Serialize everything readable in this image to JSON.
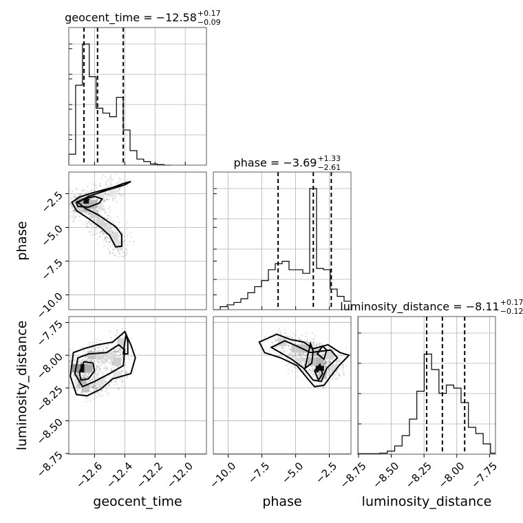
{
  "chart_data": {
    "type": "corner",
    "parameters": [
      "geocent_time",
      "phase",
      "luminosity_distance"
    ],
    "axis_labels": {
      "x": [
        "geocent_time",
        "phase",
        "luminosity_distance"
      ],
      "y": [
        "phase",
        "luminosity_distance"
      ]
    },
    "titles": [
      {
        "param": "geocent_time",
        "text": "geocent_time = −12.58",
        "plus": "+0.17",
        "minus": "−0.09"
      },
      {
        "param": "phase",
        "text": "phase = −3.69",
        "plus": "+1.33",
        "minus": "−2.61"
      },
      {
        "param": "luminosity_distance",
        "text": "luminosity_distance = −8.11",
        "plus": "+0.17",
        "minus": "−0.12"
      }
    ],
    "ranges": {
      "geocent_time": [
        -12.77,
        -11.86
      ],
      "phase": [
        -11.1,
        -0.9
      ],
      "luminosity_distance": [
        -8.755,
        -7.705
      ]
    },
    "ticks": {
      "geocent_time": [
        -12.6,
        -12.4,
        -12.2,
        -12.0
      ],
      "phase": [
        -10.0,
        -7.5,
        -5.0,
        -2.5
      ],
      "luminosity_distance": [
        -8.75,
        -8.5,
        -8.25,
        -8.0,
        -7.75
      ]
    },
    "tick_labels": {
      "geocent_time": [
        "−12.6",
        "−12.4",
        "−12.2",
        "−12.0"
      ],
      "phase": [
        "−10.0",
        "−7.5",
        "−5.0",
        "−2.5"
      ],
      "luminosity_distance": [
        "−8.75",
        "−8.50",
        "−8.25",
        "−8.00",
        "−7.75"
      ]
    },
    "quantiles": {
      "geocent_time": [
        -12.67,
        -12.58,
        -12.41
      ],
      "phase": [
        -6.3,
        -3.69,
        -2.36
      ],
      "luminosity_distance": [
        -8.23,
        -8.11,
        -7.94
      ]
    },
    "histograms": {
      "geocent_time": {
        "edges": [
          -12.77,
          -12.725,
          -12.68,
          -12.635,
          -12.59,
          -12.545,
          -12.5,
          -12.455,
          -12.41,
          -12.365,
          -12.32,
          -12.275,
          -12.23,
          -12.185,
          -12.14,
          -12.095
        ],
        "counts": [
          0.09,
          0.66,
          1.0,
          0.73,
          0.47,
          0.43,
          0.4,
          0.56,
          0.29,
          0.12,
          0.05,
          0.03,
          0.01,
          0.005,
          0.0
        ]
      },
      "phase": {
        "edges": [
          -11.1,
          -10.59,
          -10.08,
          -9.57,
          -9.06,
          -8.55,
          -8.04,
          -7.53,
          -7.02,
          -6.51,
          -6.0,
          -5.49,
          -4.98,
          -4.47,
          -3.96,
          -3.45,
          -2.94,
          -2.43,
          -1.92,
          -1.41,
          -0.9
        ],
        "counts": [
          0.0,
          0.025,
          0.04,
          0.06,
          0.09,
          0.14,
          0.19,
          0.24,
          0.33,
          0.38,
          0.4,
          0.33,
          0.33,
          0.3,
          1.0,
          0.34,
          0.33,
          0.17,
          0.11,
          0.07
        ]
      },
      "luminosity_distance": {
        "edges": [
          -8.755,
          -8.6988,
          -8.6425,
          -8.5863,
          -8.53,
          -8.4738,
          -8.4175,
          -8.3613,
          -8.305,
          -8.2488,
          -8.1925,
          -8.1363,
          -8.08,
          -8.0238,
          -7.9675,
          -7.9113,
          -7.855,
          -7.7988,
          -7.7425,
          -7.705
        ],
        "counts": [
          0.005,
          0.005,
          0.005,
          0.01,
          0.03,
          0.08,
          0.18,
          0.34,
          0.61,
          0.97,
          0.82,
          0.59,
          0.67,
          0.64,
          0.5,
          0.26,
          0.2,
          0.1,
          0.01
        ]
      }
    },
    "density_2d": [
      {
        "x": "geocent_time",
        "y": "phase",
        "cells": [
          [
            -12.66,
            -3.2,
            1.0
          ],
          [
            -12.7,
            -3.1,
            0.35
          ],
          [
            -12.61,
            -3.3,
            0.3
          ],
          [
            -12.66,
            -3.55,
            0.3
          ],
          [
            -12.6,
            -4.0,
            0.2
          ],
          [
            -12.56,
            -4.7,
            0.18
          ],
          [
            -12.52,
            -5.2,
            0.15
          ],
          [
            -12.47,
            -5.7,
            0.15
          ],
          [
            -12.44,
            -6.3,
            0.12
          ],
          [
            -12.56,
            -2.6,
            0.12
          ],
          [
            -12.48,
            -2.2,
            0.1
          ],
          [
            -12.7,
            -3.6,
            0.2
          ]
        ],
        "contours": [
          [
            [
              -12.75,
              -3.15
            ],
            [
              -12.7,
              -2.75
            ],
            [
              -12.6,
              -2.4
            ],
            [
              -12.48,
              -2.05
            ],
            [
              -12.41,
              -1.75
            ],
            [
              -12.36,
              -1.6
            ],
            [
              -12.4,
              -1.85
            ],
            [
              -12.52,
              -2.25
            ],
            [
              -12.64,
              -2.7
            ],
            [
              -12.71,
              -3.15
            ],
            [
              -12.66,
              -3.6
            ],
            [
              -12.58,
              -4.05
            ],
            [
              -12.52,
              -4.5
            ],
            [
              -12.46,
              -4.95
            ],
            [
              -12.42,
              -5.55
            ],
            [
              -12.42,
              -6.4
            ],
            [
              -12.46,
              -6.45
            ],
            [
              -12.5,
              -5.6
            ],
            [
              -12.56,
              -5.0
            ],
            [
              -12.64,
              -4.35
            ],
            [
              -12.72,
              -3.75
            ],
            [
              -12.75,
              -3.15
            ]
          ],
          [
            [
              -12.72,
              -3.15
            ],
            [
              -12.67,
              -2.9
            ],
            [
              -12.6,
              -2.7
            ],
            [
              -12.55,
              -2.9
            ],
            [
              -12.57,
              -3.2
            ],
            [
              -12.64,
              -3.5
            ],
            [
              -12.71,
              -3.45
            ],
            [
              -12.72,
              -3.15
            ]
          ]
        ]
      },
      {
        "x": "geocent_time",
        "y": "luminosity_distance",
        "cells": [
          [
            -12.68,
            -8.1,
            1.0
          ],
          [
            -12.72,
            -8.1,
            0.45
          ],
          [
            -12.64,
            -8.1,
            0.35
          ],
          [
            -12.68,
            -8.2,
            0.3
          ],
          [
            -12.66,
            -8.25,
            0.25
          ],
          [
            -12.62,
            -8.0,
            0.25
          ],
          [
            -12.56,
            -8.0,
            0.18
          ],
          [
            -12.5,
            -8.0,
            0.15
          ],
          [
            -12.45,
            -8.05,
            0.2
          ],
          [
            -12.42,
            -7.9,
            0.18
          ],
          [
            -12.56,
            -8.2,
            0.12
          ],
          [
            -12.45,
            -8.15,
            0.12
          ]
        ],
        "contours": [
          [
            [
              -12.76,
              -8.16
            ],
            [
              -12.74,
              -7.98
            ],
            [
              -12.67,
              -7.95
            ],
            [
              -12.58,
              -7.92
            ],
            [
              -12.48,
              -7.9
            ],
            [
              -12.42,
              -7.84
            ],
            [
              -12.4,
              -7.82
            ],
            [
              -12.36,
              -7.92
            ],
            [
              -12.33,
              -8.02
            ],
            [
              -12.36,
              -8.14
            ],
            [
              -12.48,
              -8.18
            ],
            [
              -12.56,
              -8.26
            ],
            [
              -12.65,
              -8.31
            ],
            [
              -12.72,
              -8.3
            ],
            [
              -12.76,
              -8.16
            ]
          ],
          [
            [
              -12.73,
              -8.14
            ],
            [
              -12.71,
              -8.02
            ],
            [
              -12.64,
              -7.99
            ],
            [
              -12.52,
              -7.98
            ],
            [
              -12.44,
              -7.92
            ],
            [
              -12.4,
              -7.96
            ],
            [
              -12.41,
              -8.08
            ],
            [
              -12.5,
              -8.14
            ],
            [
              -12.6,
              -8.2
            ],
            [
              -12.68,
              -8.24
            ],
            [
              -12.73,
              -8.14
            ]
          ],
          [
            [
              -12.7,
              -8.13
            ],
            [
              -12.67,
              -8.05
            ],
            [
              -12.61,
              -8.06
            ],
            [
              -12.6,
              -8.12
            ],
            [
              -12.64,
              -8.18
            ],
            [
              -12.69,
              -8.19
            ],
            [
              -12.7,
              -8.13
            ]
          ],
          [
            [
              -12.41,
              -7.99
            ],
            [
              -12.4,
              -7.9
            ],
            [
              -12.39,
              -7.84
            ],
            [
              -12.38,
              -7.9
            ],
            [
              -12.38,
              -7.99
            ],
            [
              -12.41,
              -7.99
            ]
          ]
        ]
      },
      {
        "x": "phase",
        "y": "luminosity_distance",
        "cells": [
          [
            -3.2,
            -8.1,
            1.0
          ],
          [
            -3.2,
            -8.05,
            0.3
          ],
          [
            -3.0,
            -8.15,
            0.25
          ],
          [
            -4.4,
            -7.95,
            0.25
          ],
          [
            -5.0,
            -7.95,
            0.22
          ],
          [
            -6.0,
            -7.9,
            0.18
          ],
          [
            -3.8,
            -8.05,
            0.25
          ],
          [
            -4.8,
            -8.05,
            0.15
          ],
          [
            -2.5,
            -8.0,
            0.18
          ],
          [
            -2.2,
            -8.1,
            0.15
          ],
          [
            -3.5,
            -7.97,
            0.22
          ]
        ],
        "contours": [
          [
            [
              -7.7,
              -7.9
            ],
            [
              -6.4,
              -7.84
            ],
            [
              -5.4,
              -7.88
            ],
            [
              -4.4,
              -7.9
            ],
            [
              -3.7,
              -7.95
            ],
            [
              -2.6,
              -7.92
            ],
            [
              -1.7,
              -7.98
            ],
            [
              -1.05,
              -8.0
            ],
            [
              -1.8,
              -8.08
            ],
            [
              -2.4,
              -8.16
            ],
            [
              -2.9,
              -8.23
            ],
            [
              -3.6,
              -8.24
            ],
            [
              -4.1,
              -8.18
            ],
            [
              -4.9,
              -8.08
            ],
            [
              -6.1,
              -8.02
            ],
            [
              -7.3,
              -7.98
            ],
            [
              -7.7,
              -7.9
            ]
          ],
          [
            [
              -6.8,
              -7.94
            ],
            [
              -5.8,
              -7.89
            ],
            [
              -4.7,
              -7.94
            ],
            [
              -3.9,
              -7.98
            ],
            [
              -3.2,
              -7.97
            ],
            [
              -2.4,
              -7.96
            ],
            [
              -1.9,
              -8.02
            ],
            [
              -2.7,
              -8.1
            ],
            [
              -3.1,
              -8.2
            ],
            [
              -3.7,
              -8.19
            ],
            [
              -4.4,
              -8.1
            ],
            [
              -5.3,
              -8.03
            ],
            [
              -6.8,
              -7.94
            ]
          ],
          [
            [
              -4.3,
              -8.1
            ],
            [
              -4.1,
              -8.0
            ],
            [
              -3.9,
              -7.91
            ],
            [
              -3.7,
              -7.97
            ],
            [
              -3.8,
              -8.06
            ],
            [
              -4.3,
              -8.1
            ]
          ],
          [
            [
              -3.4,
              -7.99
            ],
            [
              -3.0,
              -7.93
            ],
            [
              -2.7,
              -7.96
            ],
            [
              -2.9,
              -8.03
            ],
            [
              -3.4,
              -7.99
            ]
          ],
          [
            [
              -3.6,
              -8.12
            ],
            [
              -3.2,
              -8.07
            ],
            [
              -3.0,
              -8.14
            ],
            [
              -3.3,
              -8.19
            ],
            [
              -3.6,
              -8.12
            ]
          ]
        ]
      }
    ],
    "point_color": "#444444",
    "line_color": "#000000",
    "grid": true
  }
}
